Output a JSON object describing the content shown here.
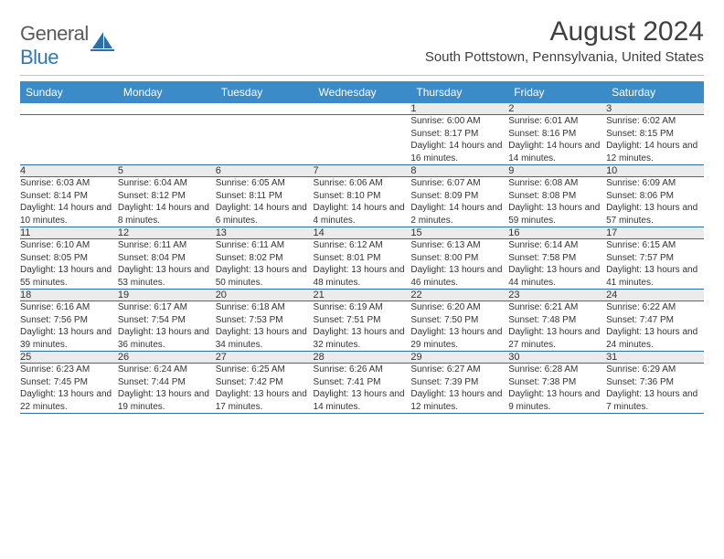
{
  "logo": {
    "text_gray": "General",
    "text_blue": "Blue"
  },
  "title": "August 2024",
  "location": "South Pottstown, Pennsylvania, United States",
  "colors": {
    "header_bg": "#3b8bc9",
    "header_text": "#ffffff",
    "daynum_bg": "#ebebeb",
    "row_divider": "#2f6ea0",
    "logo_gray": "#5a5a5a",
    "logo_blue": "#2a7ab8"
  },
  "day_headers": [
    "Sunday",
    "Monday",
    "Tuesday",
    "Wednesday",
    "Thursday",
    "Friday",
    "Saturday"
  ],
  "weeks": [
    {
      "nums": [
        "",
        "",
        "",
        "",
        "1",
        "2",
        "3"
      ],
      "cells": [
        {
          "empty": true
        },
        {
          "empty": true
        },
        {
          "empty": true
        },
        {
          "empty": true
        },
        {
          "sunrise": "6:00 AM",
          "sunset": "8:17 PM",
          "daylight": "14 hours and 16 minutes."
        },
        {
          "sunrise": "6:01 AM",
          "sunset": "8:16 PM",
          "daylight": "14 hours and 14 minutes."
        },
        {
          "sunrise": "6:02 AM",
          "sunset": "8:15 PM",
          "daylight": "14 hours and 12 minutes."
        }
      ]
    },
    {
      "nums": [
        "4",
        "5",
        "6",
        "7",
        "8",
        "9",
        "10"
      ],
      "cells": [
        {
          "sunrise": "6:03 AM",
          "sunset": "8:14 PM",
          "daylight": "14 hours and 10 minutes."
        },
        {
          "sunrise": "6:04 AM",
          "sunset": "8:12 PM",
          "daylight": "14 hours and 8 minutes."
        },
        {
          "sunrise": "6:05 AM",
          "sunset": "8:11 PM",
          "daylight": "14 hours and 6 minutes."
        },
        {
          "sunrise": "6:06 AM",
          "sunset": "8:10 PM",
          "daylight": "14 hours and 4 minutes."
        },
        {
          "sunrise": "6:07 AM",
          "sunset": "8:09 PM",
          "daylight": "14 hours and 2 minutes."
        },
        {
          "sunrise": "6:08 AM",
          "sunset": "8:08 PM",
          "daylight": "13 hours and 59 minutes."
        },
        {
          "sunrise": "6:09 AM",
          "sunset": "8:06 PM",
          "daylight": "13 hours and 57 minutes."
        }
      ]
    },
    {
      "nums": [
        "11",
        "12",
        "13",
        "14",
        "15",
        "16",
        "17"
      ],
      "cells": [
        {
          "sunrise": "6:10 AM",
          "sunset": "8:05 PM",
          "daylight": "13 hours and 55 minutes."
        },
        {
          "sunrise": "6:11 AM",
          "sunset": "8:04 PM",
          "daylight": "13 hours and 53 minutes."
        },
        {
          "sunrise": "6:11 AM",
          "sunset": "8:02 PM",
          "daylight": "13 hours and 50 minutes."
        },
        {
          "sunrise": "6:12 AM",
          "sunset": "8:01 PM",
          "daylight": "13 hours and 48 minutes."
        },
        {
          "sunrise": "6:13 AM",
          "sunset": "8:00 PM",
          "daylight": "13 hours and 46 minutes."
        },
        {
          "sunrise": "6:14 AM",
          "sunset": "7:58 PM",
          "daylight": "13 hours and 44 minutes."
        },
        {
          "sunrise": "6:15 AM",
          "sunset": "7:57 PM",
          "daylight": "13 hours and 41 minutes."
        }
      ]
    },
    {
      "nums": [
        "18",
        "19",
        "20",
        "21",
        "22",
        "23",
        "24"
      ],
      "cells": [
        {
          "sunrise": "6:16 AM",
          "sunset": "7:56 PM",
          "daylight": "13 hours and 39 minutes."
        },
        {
          "sunrise": "6:17 AM",
          "sunset": "7:54 PM",
          "daylight": "13 hours and 36 minutes."
        },
        {
          "sunrise": "6:18 AM",
          "sunset": "7:53 PM",
          "daylight": "13 hours and 34 minutes."
        },
        {
          "sunrise": "6:19 AM",
          "sunset": "7:51 PM",
          "daylight": "13 hours and 32 minutes."
        },
        {
          "sunrise": "6:20 AM",
          "sunset": "7:50 PM",
          "daylight": "13 hours and 29 minutes."
        },
        {
          "sunrise": "6:21 AM",
          "sunset": "7:48 PM",
          "daylight": "13 hours and 27 minutes."
        },
        {
          "sunrise": "6:22 AM",
          "sunset": "7:47 PM",
          "daylight": "13 hours and 24 minutes."
        }
      ]
    },
    {
      "nums": [
        "25",
        "26",
        "27",
        "28",
        "29",
        "30",
        "31"
      ],
      "cells": [
        {
          "sunrise": "6:23 AM",
          "sunset": "7:45 PM",
          "daylight": "13 hours and 22 minutes."
        },
        {
          "sunrise": "6:24 AM",
          "sunset": "7:44 PM",
          "daylight": "13 hours and 19 minutes."
        },
        {
          "sunrise": "6:25 AM",
          "sunset": "7:42 PM",
          "daylight": "13 hours and 17 minutes."
        },
        {
          "sunrise": "6:26 AM",
          "sunset": "7:41 PM",
          "daylight": "13 hours and 14 minutes."
        },
        {
          "sunrise": "6:27 AM",
          "sunset": "7:39 PM",
          "daylight": "13 hours and 12 minutes."
        },
        {
          "sunrise": "6:28 AM",
          "sunset": "7:38 PM",
          "daylight": "13 hours and 9 minutes."
        },
        {
          "sunrise": "6:29 AM",
          "sunset": "7:36 PM",
          "daylight": "13 hours and 7 minutes."
        }
      ]
    }
  ],
  "labels": {
    "sunrise": "Sunrise: ",
    "sunset": "Sunset: ",
    "daylight": "Daylight: "
  }
}
